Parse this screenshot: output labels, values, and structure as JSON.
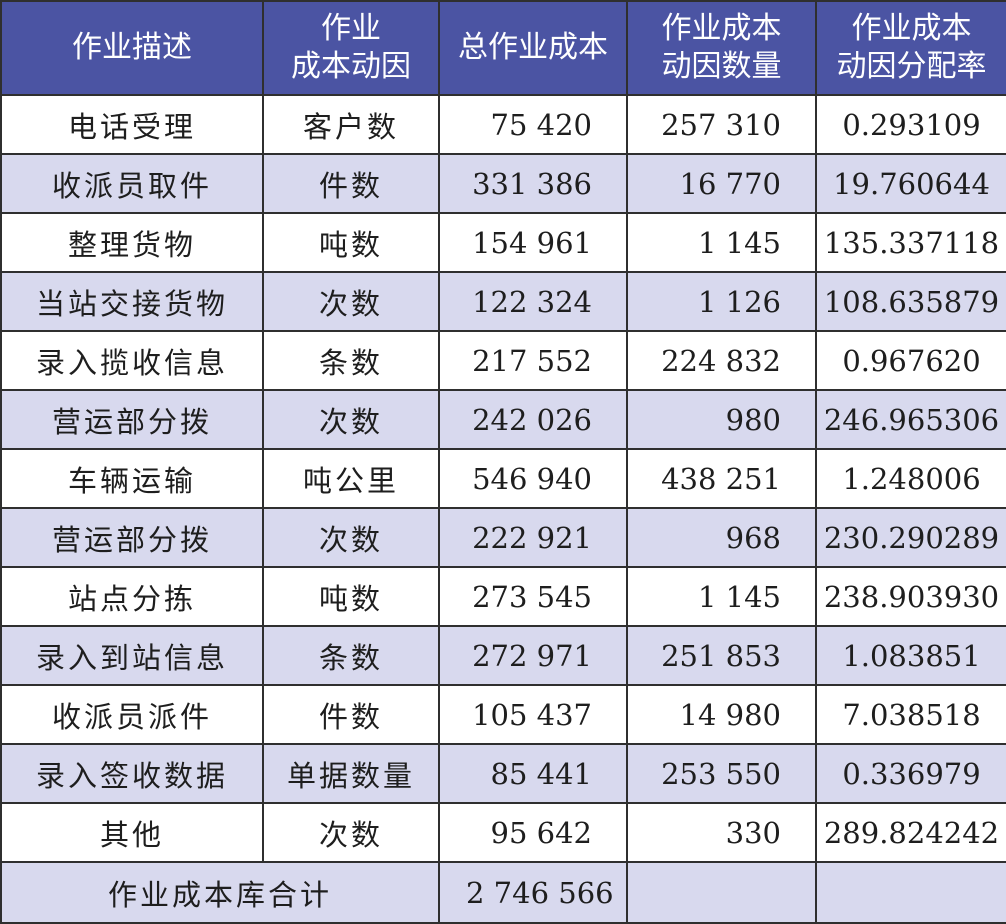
{
  "colors": {
    "header_bg": "#4b54a3",
    "row_alt_bg": "#d8d9ee",
    "row_bg": "#ffffff"
  },
  "headers": [
    [
      "作业描述"
    ],
    [
      "作业",
      "成本动因"
    ],
    [
      "总作业成本"
    ],
    [
      "作业成本",
      "动因数量"
    ],
    [
      "作业成本",
      "动因分配率"
    ]
  ],
  "rows": [
    [
      "电话受理",
      "客户数",
      "75 420",
      "257 310",
      "0.293109"
    ],
    [
      "收派员取件",
      "件数",
      "331 386",
      "16 770",
      "19.760644"
    ],
    [
      "整理货物",
      "吨数",
      "154 961",
      "1 145",
      "135.337118"
    ],
    [
      "当站交接货物",
      "次数",
      "122 324",
      "1 126",
      "108.635879"
    ],
    [
      "录入揽收信息",
      "条数",
      "217 552",
      "224 832",
      "0.967620"
    ],
    [
      "营运部分拨",
      "次数",
      "242 026",
      "980",
      "246.965306"
    ],
    [
      "车辆运输",
      "吨公里",
      "546 940",
      "438 251",
      "1.248006"
    ],
    [
      "营运部分拨",
      "次数",
      "222 921",
      "968",
      "230.290289"
    ],
    [
      "站点分拣",
      "吨数",
      "273 545",
      "1 145",
      "238.903930"
    ],
    [
      "录入到站信息",
      "条数",
      "272 971",
      "251 853",
      "1.083851"
    ],
    [
      "收派员派件",
      "件数",
      "105 437",
      "14 980",
      "7.038518"
    ],
    [
      "录入签收数据",
      "单据数量",
      "85 441",
      "253 550",
      "0.336979"
    ],
    [
      "其他",
      "次数",
      "95 642",
      "330",
      "289.824242"
    ]
  ],
  "total": {
    "label": "作业成本库合计",
    "value": "2 746 566"
  }
}
